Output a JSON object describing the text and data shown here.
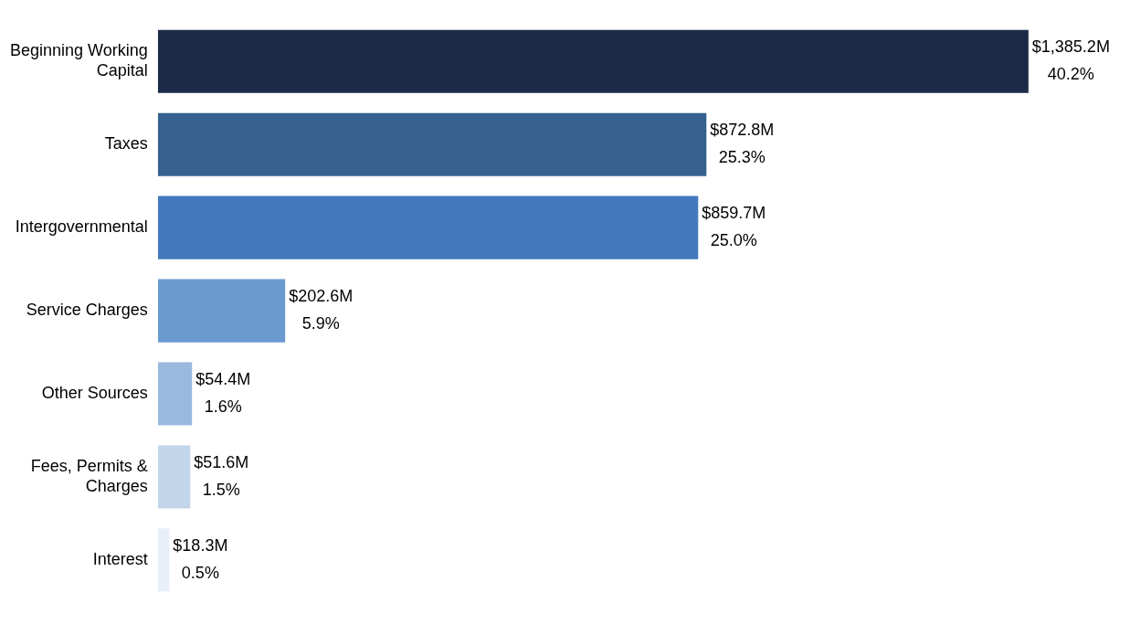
{
  "chart_data": {
    "type": "bar",
    "orientation": "horizontal",
    "categories": [
      "Beginning Working Capital",
      "Taxes",
      "Intergovernmental",
      "Service Charges",
      "Other Sources",
      "Fees, Permits & Charges",
      "Interest"
    ],
    "values": [
      1385.2,
      872.8,
      859.7,
      202.6,
      54.4,
      51.6,
      18.3
    ],
    "colors": [
      "#1b2b47",
      "#36618f",
      "#4479bd",
      "#6b9acf",
      "#9ab9de",
      "#c3d5eb",
      "#e9eff8"
    ],
    "value_labels": [
      "$1,385.2M",
      "$872.8M",
      "$859.7M",
      "$202.6M",
      "$54.4M",
      "$51.6M",
      "$18.3M"
    ],
    "annotations": [
      {
        "text": "40.2%",
        "x": 1385.2,
        "y": "Beginning Working Capital"
      },
      {
        "text": "25.3%",
        "x": 872.8,
        "y": "Taxes"
      },
      {
        "text": "25.0%",
        "x": 859.7,
        "y": "Intergovernmental"
      },
      {
        "text": "5.9%",
        "x": 202.6,
        "y": "Service Charges"
      },
      {
        "text": "1.6%",
        "x": 54.4,
        "y": "Other Sources"
      },
      {
        "text": "1.5%",
        "x": 51.6,
        "y": "Fees, Permits & Charges"
      },
      {
        "text": "0.5%",
        "x": 18.3,
        "y": "Interest"
      }
    ]
  }
}
